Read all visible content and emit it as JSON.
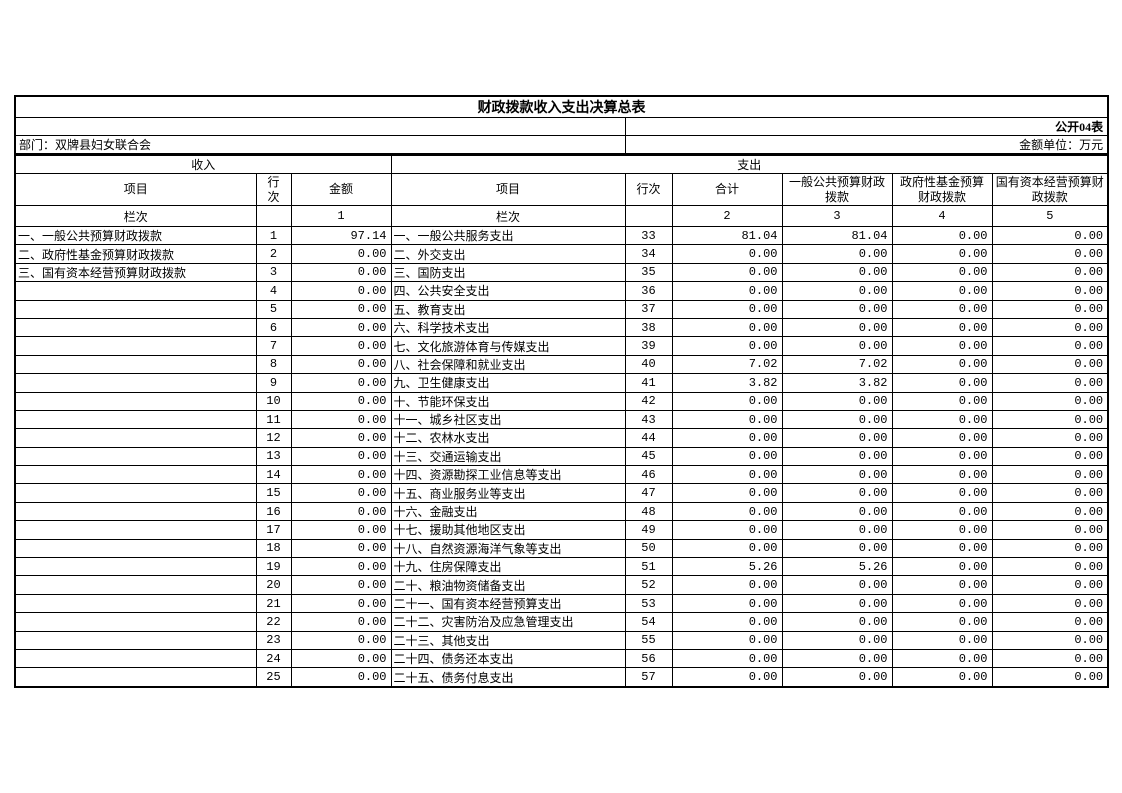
{
  "page": {
    "title": "财政拨款收入支出决算总表",
    "table_code": "公开04表",
    "department": "部门：双牌县妇女联合会",
    "unit": "金额单位：万元"
  },
  "income": {
    "section_label": "收入",
    "headers": {
      "item": "项目",
      "line_no": "行次",
      "amount": "金额"
    },
    "column_index_label": "栏次",
    "column_indexes": {
      "amount": "1"
    },
    "rows": [
      {
        "item": "一、一般公共预算财政拨款",
        "line": "1",
        "amount": "97.14"
      },
      {
        "item": "二、政府性基金预算财政拨款",
        "line": "2",
        "amount": "0.00"
      },
      {
        "item": "三、国有资本经营预算财政拨款",
        "line": "3",
        "amount": "0.00"
      },
      {
        "item": "",
        "line": "4",
        "amount": "0.00"
      },
      {
        "item": "",
        "line": "5",
        "amount": "0.00"
      },
      {
        "item": "",
        "line": "6",
        "amount": "0.00"
      },
      {
        "item": "",
        "line": "7",
        "amount": "0.00"
      },
      {
        "item": "",
        "line": "8",
        "amount": "0.00"
      },
      {
        "item": "",
        "line": "9",
        "amount": "0.00"
      },
      {
        "item": "",
        "line": "10",
        "amount": "0.00"
      },
      {
        "item": "",
        "line": "11",
        "amount": "0.00"
      },
      {
        "item": "",
        "line": "12",
        "amount": "0.00"
      },
      {
        "item": "",
        "line": "13",
        "amount": "0.00"
      },
      {
        "item": "",
        "line": "14",
        "amount": "0.00"
      },
      {
        "item": "",
        "line": "15",
        "amount": "0.00"
      },
      {
        "item": "",
        "line": "16",
        "amount": "0.00"
      },
      {
        "item": "",
        "line": "17",
        "amount": "0.00"
      },
      {
        "item": "",
        "line": "18",
        "amount": "0.00"
      },
      {
        "item": "",
        "line": "19",
        "amount": "0.00"
      },
      {
        "item": "",
        "line": "20",
        "amount": "0.00"
      },
      {
        "item": "",
        "line": "21",
        "amount": "0.00"
      },
      {
        "item": "",
        "line": "22",
        "amount": "0.00"
      },
      {
        "item": "",
        "line": "23",
        "amount": "0.00"
      },
      {
        "item": "",
        "line": "24",
        "amount": "0.00"
      },
      {
        "item": "",
        "line": "25",
        "amount": "0.00"
      }
    ]
  },
  "expenditure": {
    "section_label": "支出",
    "headers": {
      "item": "项目",
      "line_no": "行次",
      "total": "合计",
      "general": "一般公共预算财政拨款",
      "govfund": "政府性基金预算财政拨款",
      "statecap": "国有资本经营预算财政拨款"
    },
    "column_index_label": "栏次",
    "column_indexes": {
      "total": "2",
      "general": "3",
      "govfund": "4",
      "statecap": "5"
    },
    "rows": [
      {
        "item": "一、一般公共服务支出",
        "line": "33",
        "total": "81.04",
        "general": "81.04",
        "govfund": "0.00",
        "statecap": "0.00"
      },
      {
        "item": "二、外交支出",
        "line": "34",
        "total": "0.00",
        "general": "0.00",
        "govfund": "0.00",
        "statecap": "0.00"
      },
      {
        "item": "三、国防支出",
        "line": "35",
        "total": "0.00",
        "general": "0.00",
        "govfund": "0.00",
        "statecap": "0.00"
      },
      {
        "item": "四、公共安全支出",
        "line": "36",
        "total": "0.00",
        "general": "0.00",
        "govfund": "0.00",
        "statecap": "0.00"
      },
      {
        "item": "五、教育支出",
        "line": "37",
        "total": "0.00",
        "general": "0.00",
        "govfund": "0.00",
        "statecap": "0.00"
      },
      {
        "item": "六、科学技术支出",
        "line": "38",
        "total": "0.00",
        "general": "0.00",
        "govfund": "0.00",
        "statecap": "0.00"
      },
      {
        "item": "七、文化旅游体育与传媒支出",
        "line": "39",
        "total": "0.00",
        "general": "0.00",
        "govfund": "0.00",
        "statecap": "0.00"
      },
      {
        "item": "八、社会保障和就业支出",
        "line": "40",
        "total": "7.02",
        "general": "7.02",
        "govfund": "0.00",
        "statecap": "0.00"
      },
      {
        "item": "九、卫生健康支出",
        "line": "41",
        "total": "3.82",
        "general": "3.82",
        "govfund": "0.00",
        "statecap": "0.00"
      },
      {
        "item": "十、节能环保支出",
        "line": "42",
        "total": "0.00",
        "general": "0.00",
        "govfund": "0.00",
        "statecap": "0.00"
      },
      {
        "item": "十一、城乡社区支出",
        "line": "43",
        "total": "0.00",
        "general": "0.00",
        "govfund": "0.00",
        "statecap": "0.00"
      },
      {
        "item": "十二、农林水支出",
        "line": "44",
        "total": "0.00",
        "general": "0.00",
        "govfund": "0.00",
        "statecap": "0.00"
      },
      {
        "item": "十三、交通运输支出",
        "line": "45",
        "total": "0.00",
        "general": "0.00",
        "govfund": "0.00",
        "statecap": "0.00"
      },
      {
        "item": "十四、资源勘探工业信息等支出",
        "line": "46",
        "total": "0.00",
        "general": "0.00",
        "govfund": "0.00",
        "statecap": "0.00"
      },
      {
        "item": "十五、商业服务业等支出",
        "line": "47",
        "total": "0.00",
        "general": "0.00",
        "govfund": "0.00",
        "statecap": "0.00"
      },
      {
        "item": "十六、金融支出",
        "line": "48",
        "total": "0.00",
        "general": "0.00",
        "govfund": "0.00",
        "statecap": "0.00"
      },
      {
        "item": "十七、援助其他地区支出",
        "line": "49",
        "total": "0.00",
        "general": "0.00",
        "govfund": "0.00",
        "statecap": "0.00"
      },
      {
        "item": "十八、自然资源海洋气象等支出",
        "line": "50",
        "total": "0.00",
        "general": "0.00",
        "govfund": "0.00",
        "statecap": "0.00"
      },
      {
        "item": "十九、住房保障支出",
        "line": "51",
        "total": "5.26",
        "general": "5.26",
        "govfund": "0.00",
        "statecap": "0.00"
      },
      {
        "item": "二十、粮油物资储备支出",
        "line": "52",
        "total": "0.00",
        "general": "0.00",
        "govfund": "0.00",
        "statecap": "0.00"
      },
      {
        "item": "二十一、国有资本经营预算支出",
        "line": "53",
        "total": "0.00",
        "general": "0.00",
        "govfund": "0.00",
        "statecap": "0.00"
      },
      {
        "item": "二十二、灾害防治及应急管理支出",
        "line": "54",
        "total": "0.00",
        "general": "0.00",
        "govfund": "0.00",
        "statecap": "0.00"
      },
      {
        "item": "二十三、其他支出",
        "line": "55",
        "total": "0.00",
        "general": "0.00",
        "govfund": "0.00",
        "statecap": "0.00"
      },
      {
        "item": "二十四、债务还本支出",
        "line": "56",
        "total": "0.00",
        "general": "0.00",
        "govfund": "0.00",
        "statecap": "0.00"
      },
      {
        "item": "二十五、债务付息支出",
        "line": "57",
        "total": "0.00",
        "general": "0.00",
        "govfund": "0.00",
        "statecap": "0.00"
      }
    ]
  }
}
